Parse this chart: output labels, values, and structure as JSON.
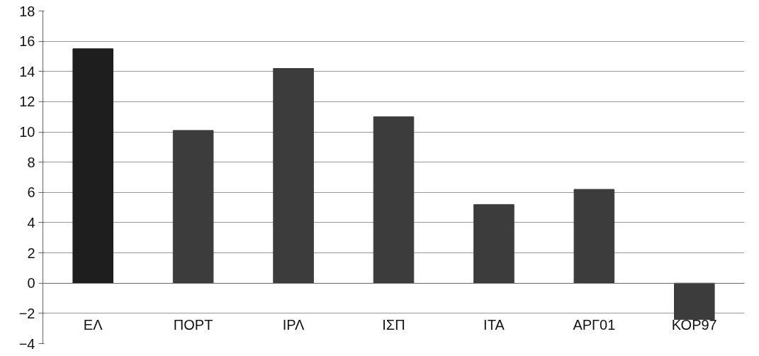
{
  "chart_data": {
    "type": "bar",
    "categories": [
      "ΕΛ",
      "ΠΟΡΤ",
      "ΙΡΛ",
      "ΙΣΠ",
      "ΙΤΑ",
      "ΑΡΓ01",
      "ΚΟΡ97"
    ],
    "values": [
      15.5,
      10.1,
      14.2,
      11.0,
      5.2,
      6.2,
      -2.4
    ],
    "colors": [
      "#1e1e1e",
      "#3c3c3c",
      "#3c3c3c",
      "#3c3c3c",
      "#3c3c3c",
      "#3c3c3c",
      "#3c3c3c"
    ],
    "ylim": [
      -4,
      18
    ],
    "yticks": [
      -4,
      -2,
      0,
      2,
      4,
      6,
      8,
      10,
      12,
      14,
      16,
      18
    ],
    "grid": "y"
  }
}
